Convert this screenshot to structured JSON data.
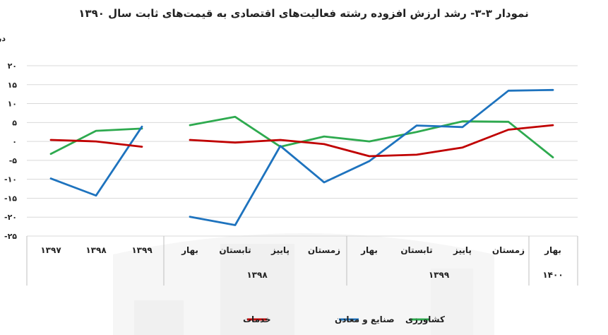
{
  "chart_data": {
    "type": "line",
    "title": "نمودار ۳-۳- رشد ارزش افزوده رشته فعالیت‌های اقتصادی به قیمت‌های ثابت سال ۱۳۹۰",
    "ylabel": "درصد",
    "ylim": [
      -25,
      20
    ],
    "yticks": [
      20,
      15,
      10,
      5,
      0,
      -5,
      -10,
      -15,
      -20,
      -25
    ],
    "ytick_labels": [
      "۲۰",
      "۱۵",
      "۱۰",
      "۵",
      "۰",
      "-۵",
      "-۱۰",
      "-۱۵",
      "-۲۰",
      "-۲۵"
    ],
    "grid": "horizontal",
    "legend_position": "bottom",
    "categories": [
      "۱۳۹۷",
      "۱۳۹۸",
      "۱۳۹۹",
      "بهار",
      "تابستان",
      "پاییز",
      "زمستان",
      "بهار",
      "تابستان",
      "پاییز",
      "زمستان",
      "بهار"
    ],
    "group_labels": [
      {
        "label": "۱۳۹۸",
        "start": 3,
        "end": 6
      },
      {
        "label": "۱۳۹۹",
        "start": 7,
        "end": 10
      },
      {
        "label": "۱۴۰۰",
        "start": 11,
        "end": 11
      }
    ],
    "segments": [
      [
        0,
        2
      ],
      [
        3,
        11
      ]
    ],
    "series": [
      {
        "name": "کشاورزی",
        "color": "#2eaa4f",
        "values": [
          -3.3,
          2.8,
          3.4,
          4.3,
          6.5,
          -1.4,
          1.3,
          0,
          2.5,
          5.3,
          5.2,
          -4.2
        ]
      },
      {
        "name": "صنایع و معادن",
        "color": "#1e73be",
        "values": [
          -9.8,
          -14.3,
          3.9,
          -19.9,
          -22.1,
          -1.2,
          -10.8,
          -5.2,
          4.2,
          3.8,
          13.4,
          13.6
        ]
      },
      {
        "name": "خدمات",
        "color": "#c00000",
        "values": [
          0.4,
          0,
          -1.4,
          0.4,
          -0.3,
          0.4,
          -0.7,
          -3.9,
          -3.5,
          -1.6,
          3.1,
          4.3
        ]
      }
    ]
  }
}
